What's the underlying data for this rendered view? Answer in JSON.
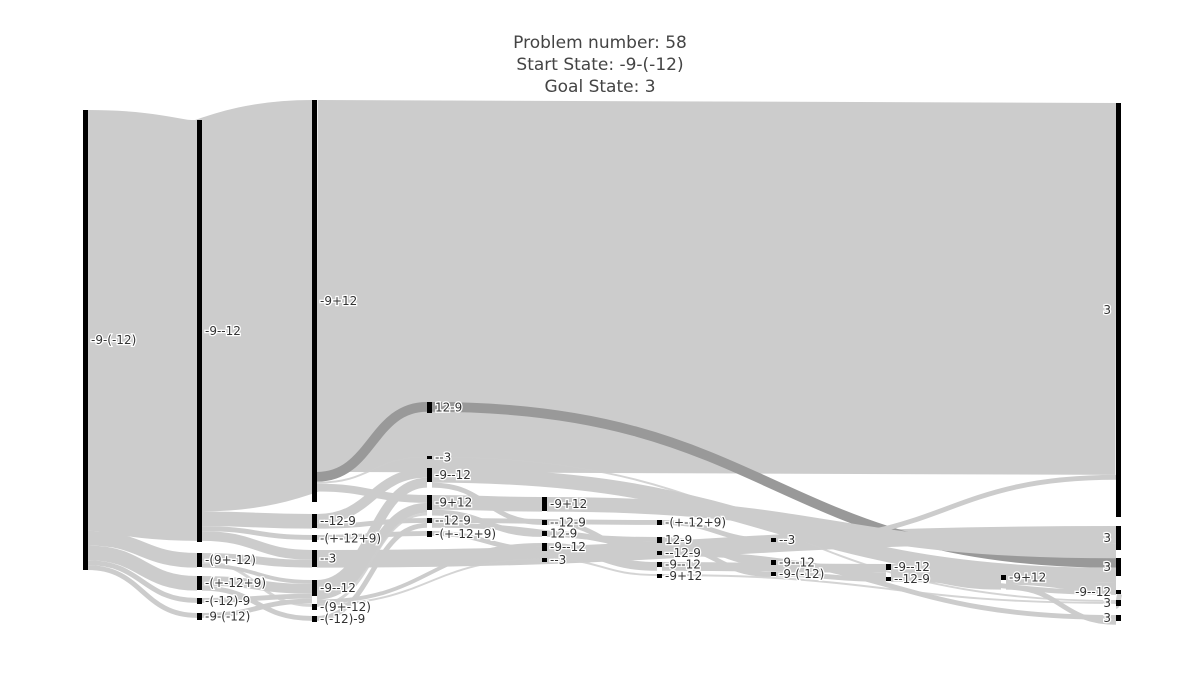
{
  "title": {
    "line1": "Problem number: 58",
    "line2": "Start State: -9-(-12)",
    "line3": "Goal State: 3"
  },
  "colors": {
    "node": "#000000",
    "link_main": "#cccccc",
    "link_highlight": "#999999",
    "text": "#444444"
  },
  "chart_data": {
    "type": "sankey",
    "title": "Problem number: 58 / Start State: -9-(-12) / Goal State: 3",
    "nodes": [
      {
        "id": "n0",
        "label": "-9-(-12)"
      },
      {
        "id": "n1",
        "label": "-9--12"
      },
      {
        "id": "n2",
        "label": "-(9+-12)"
      },
      {
        "id": "n3",
        "label": "-(+-12+9)"
      },
      {
        "id": "n4",
        "label": "-(-12)-9"
      },
      {
        "id": "n5",
        "label": "-9-(-12)"
      },
      {
        "id": "n6",
        "label": "-9+12"
      },
      {
        "id": "n7",
        "label": "--12-9"
      },
      {
        "id": "n8",
        "label": "-(+-12+9)"
      },
      {
        "id": "n9",
        "label": "--3"
      },
      {
        "id": "n10",
        "label": "-9--12"
      },
      {
        "id": "n11",
        "label": "-(9+-12)"
      },
      {
        "id": "n12",
        "label": "-(-12)-9"
      },
      {
        "id": "n13",
        "label": "12-9"
      },
      {
        "id": "n14",
        "label": "--3"
      },
      {
        "id": "n15",
        "label": "-9--12"
      },
      {
        "id": "n16",
        "label": "-9+12"
      },
      {
        "id": "n17",
        "label": "--12-9"
      },
      {
        "id": "n18",
        "label": "-(+-12+9)"
      },
      {
        "id": "n19",
        "label": "-9+12"
      },
      {
        "id": "n20",
        "label": "--12-9"
      },
      {
        "id": "n21",
        "label": "12-9"
      },
      {
        "id": "n22",
        "label": "-9--12"
      },
      {
        "id": "n23",
        "label": "--3"
      },
      {
        "id": "n24",
        "label": "-(+-12+9)"
      },
      {
        "id": "n25",
        "label": "12-9"
      },
      {
        "id": "n26",
        "label": "--12-9"
      },
      {
        "id": "n27",
        "label": "-9--12"
      },
      {
        "id": "n28",
        "label": "-9+12"
      },
      {
        "id": "n29",
        "label": "--3"
      },
      {
        "id": "n30",
        "label": "-9--12"
      },
      {
        "id": "n31",
        "label": "-9-(-12)"
      },
      {
        "id": "n32",
        "label": "-9--12"
      },
      {
        "id": "n33",
        "label": "--12-9"
      },
      {
        "id": "n34",
        "label": "-9+12"
      },
      {
        "id": "n35",
        "label": "3"
      },
      {
        "id": "n36",
        "label": "3"
      },
      {
        "id": "n37",
        "label": "3"
      },
      {
        "id": "n38",
        "label": "-9--12"
      },
      {
        "id": "n39",
        "label": "3"
      },
      {
        "id": "n40",
        "label": "3"
      }
    ],
    "links": [
      {
        "source": "n0",
        "target": "n1",
        "value": 43
      },
      {
        "source": "n0",
        "target": "n2",
        "value": 1.5
      },
      {
        "source": "n0",
        "target": "n3",
        "value": 1.5
      },
      {
        "source": "n0",
        "target": "n4",
        "value": 0.5
      },
      {
        "source": "n0",
        "target": "n5",
        "value": 0.5
      },
      {
        "source": "n1",
        "target": "n6",
        "value": 40
      },
      {
        "source": "n1",
        "target": "n7",
        "value": 1.5
      },
      {
        "source": "n1",
        "target": "n8",
        "value": 0.5
      },
      {
        "source": "n1",
        "target": "n9",
        "value": 1
      },
      {
        "source": "n2",
        "target": "n9",
        "value": 0.8
      },
      {
        "source": "n2",
        "target": "n11",
        "value": 0.3
      },
      {
        "source": "n2",
        "target": "n10",
        "value": 0.4
      },
      {
        "source": "n3",
        "target": "n10",
        "value": 1
      },
      {
        "source": "n3",
        "target": "n12",
        "value": 0.5
      },
      {
        "source": "n4",
        "target": "n10",
        "value": 0.5
      },
      {
        "source": "n5",
        "target": "n10",
        "value": 0.5
      },
      {
        "source": "n6",
        "target": "n35",
        "value": 38
      },
      {
        "source": "n6",
        "target": "n13",
        "value": 1
      },
      {
        "source": "n6",
        "target": "n14",
        "value": 0.2
      },
      {
        "source": "n6",
        "target": "n16",
        "value": 0.8
      },
      {
        "source": "n7",
        "target": "n15",
        "value": 1
      },
      {
        "source": "n7",
        "target": "n17",
        "value": 0.5
      },
      {
        "source": "n8",
        "target": "n18",
        "value": 0.5
      },
      {
        "source": "n9",
        "target": "n36",
        "value": 1.8
      },
      {
        "source": "n10",
        "target": "n15",
        "value": 1
      },
      {
        "source": "n10",
        "target": "n16",
        "value": 1
      },
      {
        "source": "n10",
        "target": "n22",
        "value": 0.4
      },
      {
        "source": "n10",
        "target": "n23",
        "value": 0.2
      },
      {
        "source": "n11",
        "target": "n16",
        "value": 0.3
      },
      {
        "source": "n12",
        "target": "n17",
        "value": 0.5
      },
      {
        "source": "n13",
        "target": "n37",
        "value": 1
      },
      {
        "source": "n14",
        "target": "n39",
        "value": 0.2
      },
      {
        "source": "n15",
        "target": "n37",
        "value": 1.5
      },
      {
        "source": "n15",
        "target": "n20",
        "value": 0.5
      },
      {
        "source": "n16",
        "target": "n19",
        "value": 1.5
      },
      {
        "source": "n16",
        "target": "n21",
        "value": 0.6
      },
      {
        "source": "n17",
        "target": "n24",
        "value": 0.5
      },
      {
        "source": "n17",
        "target": "n25",
        "value": 0.5
      },
      {
        "source": "n18",
        "target": "n22",
        "value": 0.5
      },
      {
        "source": "n19",
        "target": "n36",
        "value": 1.5
      },
      {
        "source": "n20",
        "target": "n26",
        "value": 0.5
      },
      {
        "source": "n21",
        "target": "n25",
        "value": 0.6
      },
      {
        "source": "n22",
        "target": "n27",
        "value": 0.9
      },
      {
        "source": "n23",
        "target": "n28",
        "value": 0.2
      },
      {
        "source": "n24",
        "target": "n29",
        "value": 0.5
      },
      {
        "source": "n25",
        "target": "n30",
        "value": 0.6
      },
      {
        "source": "n25",
        "target": "n31",
        "value": 0.5
      },
      {
        "source": "n26",
        "target": "n40",
        "value": 0.5
      },
      {
        "source": "n27",
        "target": "n32",
        "value": 0.9
      },
      {
        "source": "n28",
        "target": "n39",
        "value": 0.2
      },
      {
        "source": "n29",
        "target": "n35",
        "value": 0.5
      },
      {
        "source": "n30",
        "target": "n32",
        "value": 0.6
      },
      {
        "source": "n31",
        "target": "n33",
        "value": 0.5
      },
      {
        "source": "n32",
        "target": "n34",
        "value": 1.5
      },
      {
        "source": "n33",
        "target": "n38",
        "value": 0.5
      },
      {
        "source": "n34",
        "target": "n37",
        "value": 1
      },
      {
        "source": "n34",
        "target": "n40",
        "value": 0.5
      },
      {
        "source": "n38",
        "target": "n39",
        "value": 0.5
      }
    ]
  }
}
